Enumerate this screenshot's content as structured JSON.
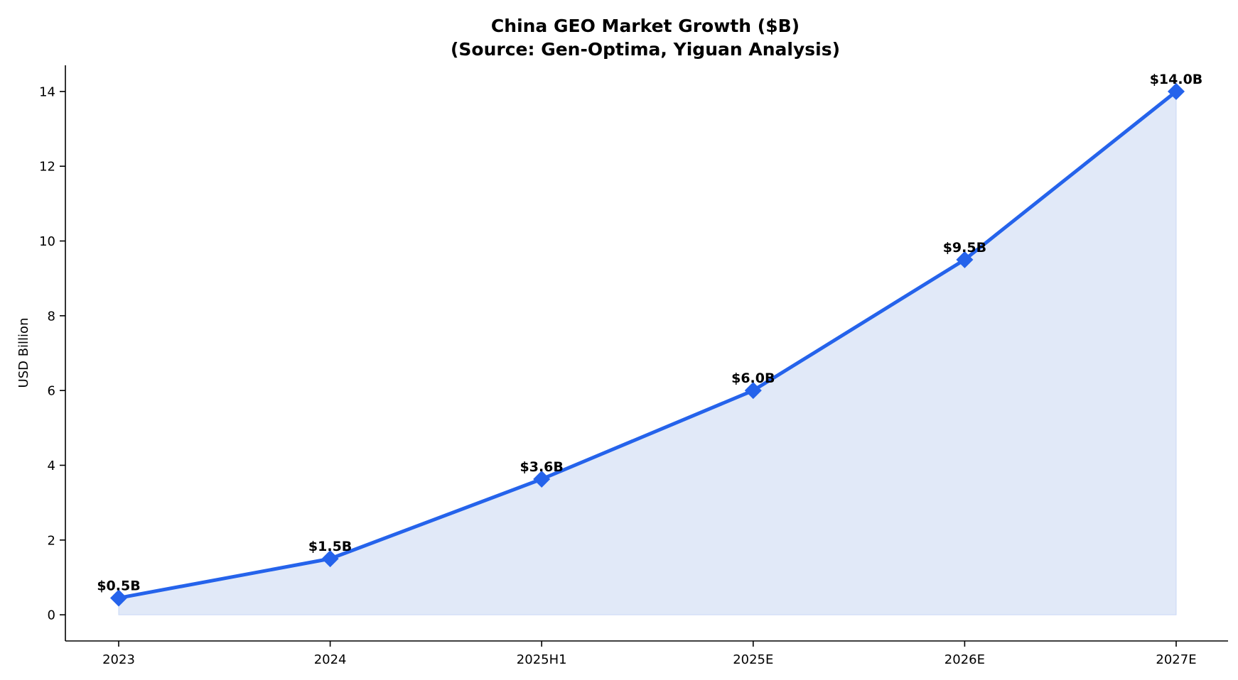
{
  "chart_data": {
    "type": "line",
    "title_line1": "China GEO Market Growth ($B)",
    "title_line2": "(Source: Gen-Optima, Yiguan Analysis)",
    "xlabel": "",
    "ylabel": "USD Billion",
    "categories": [
      "2023",
      "2024",
      "2025H1",
      "2025E",
      "2026E",
      "2027E"
    ],
    "values": [
      0.45,
      1.5,
      3.63,
      6.0,
      9.5,
      14.0
    ],
    "data_labels": [
      "$0.5B",
      "$1.5B",
      "$3.6B",
      "$6.0B",
      "$9.5B",
      "$14.0B"
    ],
    "yticks": [
      "0",
      "2",
      "4",
      "6",
      "8",
      "10",
      "12",
      "14"
    ],
    "ylim": [
      -0.7,
      14.7
    ],
    "grid": false,
    "area_fill": true,
    "marker": "diamond",
    "colors": {
      "line": "#2563eb",
      "area": "#e1e9f8",
      "axis": "#000000"
    }
  }
}
